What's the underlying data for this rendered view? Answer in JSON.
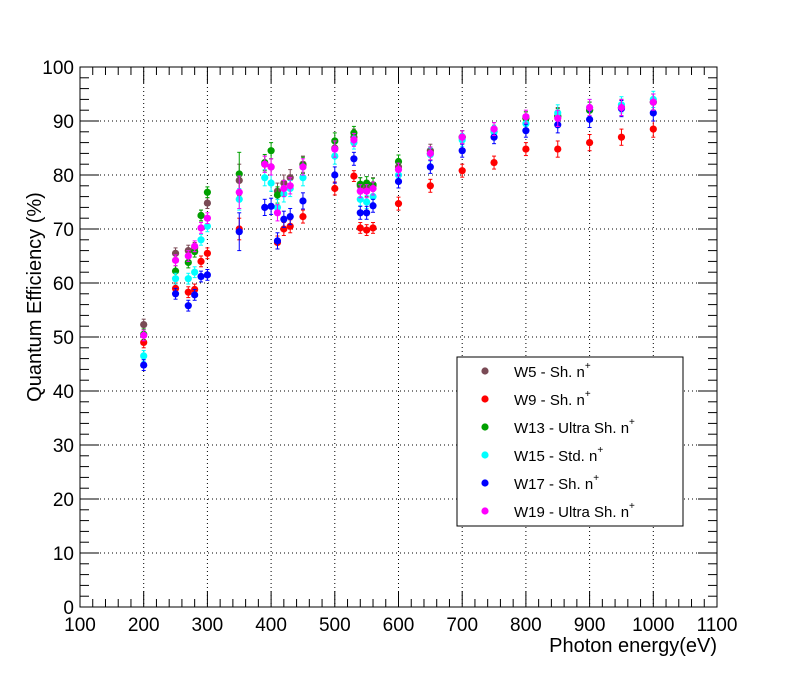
{
  "chart_data": {
    "type": "scatter",
    "title": "",
    "xlabel": "Photon energy(eV)",
    "ylabel": "Quantum Efficiency (%)",
    "xlim": [
      100,
      1100
    ],
    "ylim": [
      0,
      100
    ],
    "x_ticks": [
      "100",
      "200",
      "300",
      "400",
      "500",
      "600",
      "700",
      "800",
      "900",
      "1000",
      "1100"
    ],
    "y_ticks": [
      "0",
      "10",
      "20",
      "30",
      "40",
      "50",
      "60",
      "70",
      "80",
      "90",
      "100"
    ],
    "grid": true,
    "legend_position": "lower-right",
    "series": [
      {
        "name": "W5 - Sh. n",
        "sup": "+",
        "color": "#7a4a55",
        "x": [
          200,
          250,
          270,
          280,
          290,
          300,
          350,
          390,
          400,
          410,
          420,
          430,
          450,
          500,
          530,
          540,
          550,
          560,
          600,
          650,
          700,
          750,
          800,
          850,
          900,
          950,
          1000
        ],
        "y": [
          52.3,
          65.5,
          66.0,
          66.5,
          72.5,
          74.8,
          79.0,
          82.0,
          81.5,
          77.0,
          78.5,
          79.5,
          82.0,
          85.0,
          87.0,
          78.0,
          77.5,
          78.0,
          81.5,
          84.5,
          87.0,
          88.5,
          90.5,
          91.0,
          92.0,
          92.5,
          93.5
        ],
        "err": [
          1.0,
          1.0,
          1.0,
          1.0,
          1.0,
          1.0,
          3.0,
          1.5,
          1.5,
          1.5,
          1.5,
          1.5,
          1.5,
          1.5,
          1.5,
          1.5,
          1.5,
          1.5,
          1.2,
          1.2,
          1.2,
          1.2,
          1.2,
          1.5,
          1.5,
          1.5,
          1.5
        ]
      },
      {
        "name": "W9 - Sh. n",
        "sup": "+",
        "color": "#ff0000",
        "x": [
          200,
          250,
          270,
          280,
          290,
          300,
          350,
          410,
          420,
          430,
          450,
          500,
          530,
          540,
          550,
          560,
          600,
          650,
          700,
          750,
          800,
          850,
          900,
          950,
          1000
        ],
        "y": [
          49.0,
          59.0,
          58.3,
          58.8,
          64.0,
          65.5,
          70.0,
          67.5,
          70.0,
          70.5,
          72.3,
          77.5,
          79.8,
          70.2,
          69.8,
          70.2,
          74.7,
          78.0,
          80.8,
          82.3,
          84.8,
          84.8,
          86.0,
          87.0,
          88.5
        ],
        "err": [
          1.0,
          1.0,
          1.0,
          1.0,
          1.0,
          1.0,
          2.0,
          1.2,
          1.2,
          1.2,
          1.2,
          1.2,
          1.0,
          1.0,
          1.0,
          1.0,
          1.2,
          1.2,
          1.2,
          1.2,
          1.2,
          1.5,
          1.5,
          1.5,
          1.5
        ]
      },
      {
        "name": "W13 - Ultra Sh. n",
        "sup": "+",
        "color": "#00a000",
        "x": [
          200,
          250,
          270,
          280,
          290,
          300,
          350,
          390,
          400,
          410,
          450,
          500,
          530,
          540,
          550,
          560,
          600,
          650,
          700,
          750,
          800,
          850,
          900,
          950,
          1000
        ],
        "y": [
          50.5,
          62.2,
          63.8,
          65.8,
          72.5,
          76.8,
          80.2,
          82.3,
          84.5,
          76.3,
          81.8,
          86.3,
          87.8,
          78.3,
          78.5,
          78.2,
          82.5,
          84.0,
          87.0,
          88.0,
          90.5,
          90.8,
          92.0,
          92.5,
          93.5
        ],
        "err": [
          1.0,
          1.0,
          1.0,
          1.0,
          1.0,
          1.0,
          4.0,
          1.5,
          1.5,
          1.5,
          1.5,
          1.5,
          1.2,
          1.2,
          1.2,
          1.2,
          1.2,
          1.2,
          1.2,
          1.2,
          1.2,
          1.5,
          1.5,
          1.5,
          1.5
        ]
      },
      {
        "name": "W15 - Std. n",
        "sup": "+",
        "color": "#00ffff",
        "x": [
          200,
          250,
          270,
          280,
          290,
          300,
          350,
          390,
          400,
          410,
          420,
          430,
          450,
          500,
          530,
          540,
          550,
          560,
          600,
          650,
          700,
          750,
          800,
          850,
          900,
          950,
          1000
        ],
        "y": [
          46.5,
          60.8,
          60.8,
          62.0,
          68.0,
          70.5,
          75.5,
          79.5,
          78.5,
          74.0,
          76.5,
          77.5,
          79.5,
          83.5,
          86.0,
          75.5,
          75.0,
          76.0,
          80.0,
          83.8,
          86.5,
          88.0,
          89.5,
          91.5,
          92.5,
          93.0,
          94.0
        ],
        "err": [
          1.0,
          1.0,
          1.0,
          1.0,
          1.0,
          1.0,
          2.0,
          1.5,
          1.5,
          1.5,
          1.5,
          1.5,
          1.5,
          1.5,
          1.2,
          1.2,
          1.2,
          1.2,
          1.2,
          1.2,
          1.2,
          1.2,
          1.2,
          1.5,
          1.5,
          1.5,
          1.5
        ]
      },
      {
        "name": "W17 - Sh. n",
        "sup": "+",
        "color": "#0000ff",
        "x": [
          200,
          250,
          270,
          280,
          290,
          300,
          350,
          390,
          400,
          410,
          420,
          430,
          450,
          500,
          530,
          540,
          550,
          560,
          600,
          650,
          700,
          750,
          800,
          850,
          900,
          950,
          1000
        ],
        "y": [
          44.8,
          58.0,
          55.8,
          57.8,
          61.2,
          61.5,
          69.5,
          74.0,
          74.2,
          67.8,
          71.8,
          72.3,
          75.2,
          80.0,
          83.0,
          73.0,
          73.0,
          74.3,
          78.8,
          81.5,
          84.5,
          87.0,
          88.2,
          89.3,
          90.3,
          92.3,
          91.5
        ],
        "err": [
          1.0,
          1.0,
          1.0,
          1.0,
          1.0,
          1.0,
          3.5,
          1.5,
          1.5,
          1.5,
          1.5,
          1.5,
          1.5,
          1.5,
          1.2,
          1.2,
          1.2,
          1.2,
          1.2,
          1.2,
          1.2,
          1.2,
          1.2,
          1.5,
          1.5,
          1.5,
          1.5
        ]
      },
      {
        "name": "W19 - Ultra Sh. n",
        "sup": "+",
        "color": "#ff00ff",
        "x": [
          200,
          250,
          270,
          280,
          290,
          300,
          350,
          390,
          400,
          410,
          420,
          430,
          450,
          500,
          530,
          540,
          550,
          560,
          600,
          650,
          700,
          750,
          800,
          850,
          900,
          950,
          1000
        ],
        "y": [
          50.3,
          64.2,
          65.0,
          66.8,
          70.2,
          72.0,
          76.8,
          82.0,
          81.5,
          73.0,
          77.5,
          78.0,
          81.5,
          84.8,
          86.5,
          77.0,
          77.0,
          77.5,
          81.0,
          84.0,
          87.0,
          88.5,
          90.8,
          90.5,
          92.5,
          92.5,
          93.5
        ],
        "err": [
          1.0,
          1.0,
          1.0,
          1.0,
          1.0,
          1.0,
          3.0,
          1.5,
          1.5,
          1.5,
          1.5,
          1.5,
          1.5,
          1.5,
          1.2,
          1.2,
          1.2,
          1.2,
          1.2,
          1.2,
          1.2,
          1.2,
          1.2,
          1.5,
          1.5,
          1.5,
          1.5
        ]
      }
    ]
  }
}
